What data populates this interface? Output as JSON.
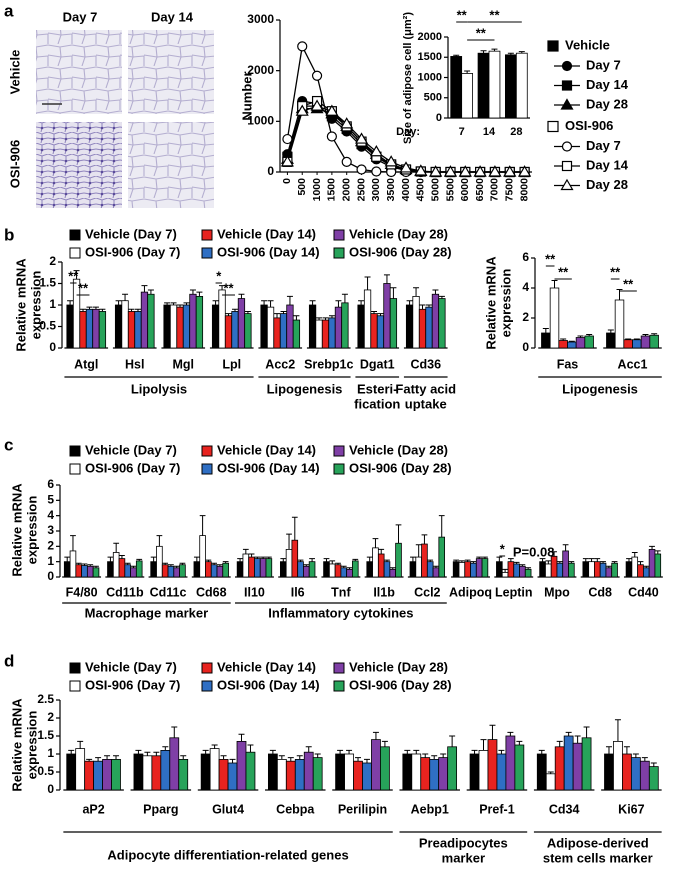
{
  "figure": {
    "panel_a": {
      "label": "a",
      "columns": [
        "Day 7",
        "Day 14"
      ],
      "rows": [
        "Vehicle",
        "OSI-906"
      ]
    }
  },
  "chart_data": [
    {
      "type": "line",
      "y_label": [
        "Number"
      ],
      "x": [
        0,
        500,
        1000,
        1500,
        2000,
        2500,
        3000,
        3500,
        4000,
        4500,
        5000,
        5500,
        6000,
        6500,
        7000,
        7500,
        8000
      ],
      "xlim": [
        -250,
        8250
      ],
      "xticks": [
        0,
        500,
        1000,
        1500,
        2000,
        2500,
        3000,
        3500,
        4000,
        4500,
        5000,
        5500,
        6000,
        6500,
        7000,
        7500,
        8000
      ],
      "ylim": [
        0,
        3000
      ],
      "yticks": [
        0,
        1000,
        2000,
        3000
      ],
      "legend": "right",
      "groups": [
        {
          "name": "Vehicle",
          "color": "#000000",
          "series": [
            {
              "name": "Day 7",
              "marker": "circle",
              "values": [
                350,
                1400,
                1350,
                1050,
                800,
                500,
                250,
                100,
                30,
                0,
                0,
                0,
                0,
                0,
                0,
                0,
                0
              ]
            },
            {
              "name": "Day 14",
              "marker": "square",
              "values": [
                300,
                1300,
                1300,
                1100,
                850,
                550,
                300,
                120,
                40,
                10,
                0,
                0,
                0,
                0,
                0,
                0,
                0
              ]
            },
            {
              "name": "Day 28",
              "marker": "triangle",
              "values": [
                250,
                1250,
                1250,
                1150,
                900,
                600,
                350,
                150,
                50,
                10,
                0,
                0,
                0,
                0,
                0,
                0,
                0
              ]
            }
          ]
        },
        {
          "name": "OSI-906",
          "color": "#ffffff",
          "series": [
            {
              "name": "Day 7",
              "marker": "circle",
              "values": [
                650,
                2480,
                1900,
                700,
                200,
                50,
                10,
                0,
                0,
                0,
                0,
                0,
                0,
                0,
                0,
                0,
                0
              ]
            },
            {
              "name": "Day 14",
              "marker": "square",
              "values": [
                200,
                1300,
                1400,
                1200,
                900,
                600,
                300,
                150,
                50,
                10,
                0,
                0,
                0,
                0,
                0,
                0,
                0
              ]
            },
            {
              "name": "Day 28",
              "marker": "triangle",
              "values": [
                200,
                1200,
                1300,
                1200,
                950,
                650,
                400,
                200,
                80,
                20,
                0,
                0,
                0,
                0,
                0,
                0,
                0
              ]
            }
          ]
        }
      ]
    },
    {
      "type": "bar",
      "y_label": [
        "Size of adipose cell (μm²)"
      ],
      "x_label": "Day:",
      "categories": [
        "7",
        "14",
        "28"
      ],
      "ylim": [
        0,
        2000
      ],
      "yticks": [
        0,
        500,
        1000,
        1500,
        2000
      ],
      "series": [
        {
          "color": "#000000",
          "values": [
            1520,
            1600,
            1560
          ],
          "errors": [
            30,
            60,
            40
          ]
        },
        {
          "color": "#ffffff",
          "values": [
            1100,
            1650,
            1600
          ],
          "errors": [
            60,
            50,
            40
          ]
        }
      ],
      "annotations": [
        "**",
        "**",
        "**"
      ]
    },
    {
      "type": "bar",
      "panel": "b",
      "y_label": [
        "Relative mRNA",
        "expression"
      ],
      "categories": [
        "Atgl",
        "Hsl",
        "Mgl",
        "Lpl",
        "Acc2",
        "Srebp1c",
        "Dgat1",
        "Cd36"
      ],
      "category_groups": [
        [
          "Lipolysis"
        ],
        [
          "Lipogenesis"
        ],
        [
          "Esteri-",
          "fication"
        ],
        [
          "Fatty acid",
          "uptake"
        ]
      ],
      "ylim": [
        0,
        2
      ],
      "yticks": [
        0,
        0.5,
        1,
        1.5,
        2
      ],
      "legend": "top-left",
      "series": [
        {
          "name": "Vehicle (Day 7)",
          "color": "#000000",
          "values": [
            1,
            1,
            1,
            1,
            1,
            1,
            1,
            1
          ],
          "errors": [
            0.1,
            0.1,
            0.05,
            0.1,
            0.1,
            0.1,
            0.1,
            0.1
          ]
        },
        {
          "name": "Vehicle (Day 14)",
          "color": "#e8231f",
          "values": [
            0.85,
            0.85,
            0.95,
            0.75,
            0.7,
            0.65,
            0.8,
            0.9
          ],
          "errors": [
            0.05,
            0.05,
            0.05,
            0.05,
            0.1,
            0.05,
            0.05,
            0.1
          ]
        },
        {
          "name": "Vehicle (Day 28)",
          "color": "#7f3fa6",
          "values": [
            0.9,
            1.3,
            1.25,
            1.15,
            1,
            0.95,
            1.5,
            1.25
          ],
          "errors": [
            0.05,
            0.15,
            0.1,
            0.1,
            0.2,
            0.15,
            0.2,
            0.1
          ]
        },
        {
          "name": "OSI-906 (Day 7)",
          "color": "#ffffff",
          "values": [
            1.6,
            1.1,
            1,
            1.35,
            0.95,
            0.65,
            1.35,
            1.2
          ],
          "errors": [
            0.2,
            0.15,
            0.05,
            0.1,
            0.15,
            0.05,
            0.3,
            0.2
          ]
        },
        {
          "name": "OSI-906 (Day 14)",
          "color": "#2f6fc4",
          "values": [
            0.9,
            0.85,
            1,
            0.85,
            0.8,
            0.7,
            0.75,
            0.95
          ],
          "errors": [
            0.05,
            0.05,
            0.05,
            0.05,
            0.05,
            0.05,
            0.05,
            0.05
          ]
        },
        {
          "name": "OSI-906 (Day 28)",
          "color": "#27a35a",
          "values": [
            0.85,
            1.25,
            1.2,
            0.8,
            0.65,
            1.05,
            1.15,
            1.15
          ],
          "errors": [
            0.05,
            0.1,
            0.1,
            0.05,
            0.1,
            0.2,
            0.25,
            0.05
          ]
        }
      ],
      "annotations": [
        "**",
        "**",
        "*",
        "**"
      ]
    },
    {
      "type": "bar",
      "y_label": [
        "Relative mRNA",
        "expression"
      ],
      "categories": [
        "Fas",
        "Acc1"
      ],
      "category_groups": [
        [
          "Lipogenesis"
        ]
      ],
      "ylim": [
        0,
        6
      ],
      "yticks": [
        0,
        2,
        4,
        6
      ],
      "series": [
        {
          "color": "#000000",
          "values": [
            1,
            1
          ],
          "errors": [
            0.3,
            0.2
          ]
        },
        {
          "color": "#e8231f",
          "values": [
            0.5,
            0.55
          ],
          "errors": [
            0.1,
            0.05
          ]
        },
        {
          "color": "#7f3fa6",
          "values": [
            0.7,
            0.8
          ],
          "errors": [
            0.1,
            0.1
          ]
        },
        {
          "color": "#ffffff",
          "values": [
            4,
            3.2
          ],
          "errors": [
            0.5,
            0.7
          ]
        },
        {
          "color": "#2f6fc4",
          "values": [
            0.4,
            0.55
          ],
          "errors": [
            0.05,
            0.05
          ]
        },
        {
          "color": "#27a35a",
          "values": [
            0.8,
            0.85
          ],
          "errors": [
            0.1,
            0.1
          ]
        }
      ],
      "annotations": [
        "**",
        "**",
        "**",
        "**"
      ]
    },
    {
      "type": "bar",
      "panel": "c",
      "y_label": [
        "Relative mRNA",
        "expression"
      ],
      "categories": [
        "F4/80",
        "Cd11b",
        "Cd11c",
        "Cd68",
        "Il10",
        "Il6",
        "Tnf",
        "Il1b",
        "Ccl2",
        "Adipoq",
        "Leptin",
        "Mpo",
        "Cd8",
        "Cd40"
      ],
      "category_groups": [
        [
          "Macrophage marker"
        ],
        [
          "Inflammatory cytokines"
        ]
      ],
      "ylim": [
        0,
        6
      ],
      "yticks": [
        0,
        1,
        2,
        3,
        4,
        5,
        6
      ],
      "legend": "top-left",
      "series": [
        {
          "name": "Vehicle (Day 7)",
          "color": "#000000",
          "values": [
            1,
            1,
            1,
            1,
            1,
            1,
            1,
            1,
            1,
            1,
            1,
            1,
            1,
            1
          ],
          "errors": [
            0.3,
            0.3,
            0.3,
            0.3,
            0.2,
            0.2,
            0.2,
            0.3,
            0.3,
            0.1,
            0.3,
            0.2,
            0.2,
            0.2
          ]
        },
        {
          "name": "Vehicle (Day 14)",
          "color": "#e8231f",
          "values": [
            0.8,
            1.2,
            0.8,
            1,
            1.3,
            2.4,
            0.8,
            1.5,
            2.15,
            1,
            1,
            1.35,
            1,
            0.8
          ],
          "errors": [
            0.1,
            0.2,
            0.1,
            0.1,
            0.2,
            1.5,
            0.1,
            0.3,
            0.6,
            0.1,
            0.2,
            0.3,
            0.2,
            0.2
          ]
        },
        {
          "name": "Vehicle (Day 28)",
          "color": "#7f3fa6",
          "values": [
            0.7,
            0.6,
            0.6,
            0.7,
            1.2,
            0.7,
            0.5,
            0.5,
            0.6,
            1.2,
            0.7,
            1.7,
            0.6,
            1.8
          ],
          "errors": [
            0.1,
            0.1,
            0.1,
            0.1,
            0.1,
            0.1,
            0.1,
            0.1,
            0.1,
            0.1,
            0.1,
            0.4,
            0.1,
            0.2
          ]
        },
        {
          "name": "OSI-906 (Day 7)",
          "color": "#ffffff",
          "values": [
            1.7,
            1.6,
            2,
            2.7,
            1.5,
            1.8,
            0.85,
            1.9,
            1.3,
            0.95,
            0.3,
            0.85,
            1,
            1.3
          ],
          "errors": [
            1,
            0.6,
            0.7,
            1.3,
            0.3,
            1,
            0.2,
            0.6,
            0.8,
            0.1,
            0.2,
            0.2,
            0.2,
            0.3
          ]
        },
        {
          "name": "OSI-906 (Day 14)",
          "color": "#2f6fc4",
          "values": [
            0.75,
            0.8,
            0.7,
            0.8,
            1.2,
            1,
            0.6,
            1,
            1,
            0.9,
            0.85,
            0.9,
            0.9,
            0.6
          ],
          "errors": [
            0.1,
            0.1,
            0.1,
            0.1,
            0.1,
            0.1,
            0.1,
            0.1,
            0.1,
            0.1,
            0.1,
            0.1,
            0.1,
            0.1
          ]
        },
        {
          "name": "OSI-906 (Day 28)",
          "color": "#27a35a",
          "values": [
            0.6,
            1.05,
            0.8,
            0.9,
            1.2,
            1,
            1.05,
            2.2,
            2.6,
            1.2,
            0.5,
            0.9,
            0.9,
            1.5
          ],
          "errors": [
            0.1,
            0.1,
            0.1,
            0.1,
            0.1,
            0.2,
            0.1,
            1.2,
            1.4,
            0.1,
            0.1,
            0.1,
            0.1,
            0.2
          ]
        }
      ],
      "annotations": [
        "*",
        "P=0.08"
      ]
    },
    {
      "type": "bar",
      "panel": "d",
      "y_label": [
        "Relative mRNA",
        "expression"
      ],
      "categories": [
        "aP2",
        "Pparg",
        "Glut4",
        "Cebpa",
        "Perilipin",
        "Aebp1",
        "Pref-1",
        "Cd34",
        "Ki67"
      ],
      "category_groups": [
        [
          "Adipocyte differentiation-related genes"
        ],
        [
          "Preadipocytes",
          "marker"
        ],
        [
          "Adipose-derived",
          "stem cells marker"
        ]
      ],
      "ylim": [
        0,
        2.5
      ],
      "yticks": [
        0,
        0.5,
        1,
        1.5,
        2,
        2.5
      ],
      "legend": "top-left",
      "series": [
        {
          "name": "Vehicle (Day 7)",
          "color": "#000000",
          "values": [
            1,
            1,
            1,
            1,
            1,
            1,
            1,
            1,
            1
          ],
          "errors": [
            0.1,
            0.1,
            0.1,
            0.1,
            0.1,
            0.1,
            0.1,
            0.1,
            0.2
          ]
        },
        {
          "name": "Vehicle (Day 14)",
          "color": "#e8231f",
          "values": [
            0.8,
            0.95,
            0.85,
            0.8,
            0.8,
            0.9,
            1.4,
            1.2,
            1
          ],
          "errors": [
            0.05,
            0.1,
            0.1,
            0.1,
            0.1,
            0.1,
            0.4,
            0.15,
            0.2
          ]
        },
        {
          "name": "Vehicle (Day 28)",
          "color": "#7f3fa6",
          "values": [
            0.85,
            1.45,
            1.35,
            1.05,
            1.4,
            0.9,
            1.5,
            1.3,
            0.8
          ],
          "errors": [
            0.1,
            0.3,
            0.2,
            0.15,
            0.2,
            0.1,
            0.1,
            0.2,
            0.1
          ]
        },
        {
          "name": "OSI-906 (Day 7)",
          "color": "#ffffff",
          "values": [
            1.15,
            0.95,
            1.15,
            0.85,
            1,
            1,
            1.1,
            0.45,
            1.35
          ],
          "errors": [
            0.2,
            0.1,
            0.1,
            0.1,
            0.1,
            0.1,
            0.3,
            0.05,
            0.6
          ]
        },
        {
          "name": "OSI-906 (Day 14)",
          "color": "#2f6fc4",
          "values": [
            0.8,
            1.1,
            0.75,
            0.85,
            0.75,
            0.85,
            1,
            1.5,
            0.9
          ],
          "errors": [
            0.1,
            0.1,
            0.1,
            0.1,
            0.1,
            0.1,
            0.1,
            0.1,
            0.1
          ]
        },
        {
          "name": "OSI-906 (Day 28)",
          "color": "#27a35a",
          "values": [
            0.85,
            0.85,
            1.05,
            0.9,
            1.2,
            1.2,
            1.25,
            1.45,
            0.65
          ],
          "errors": [
            0.1,
            0.1,
            0.2,
            0.1,
            0.15,
            0.3,
            0.1,
            0.3,
            0.1
          ]
        }
      ]
    }
  ]
}
